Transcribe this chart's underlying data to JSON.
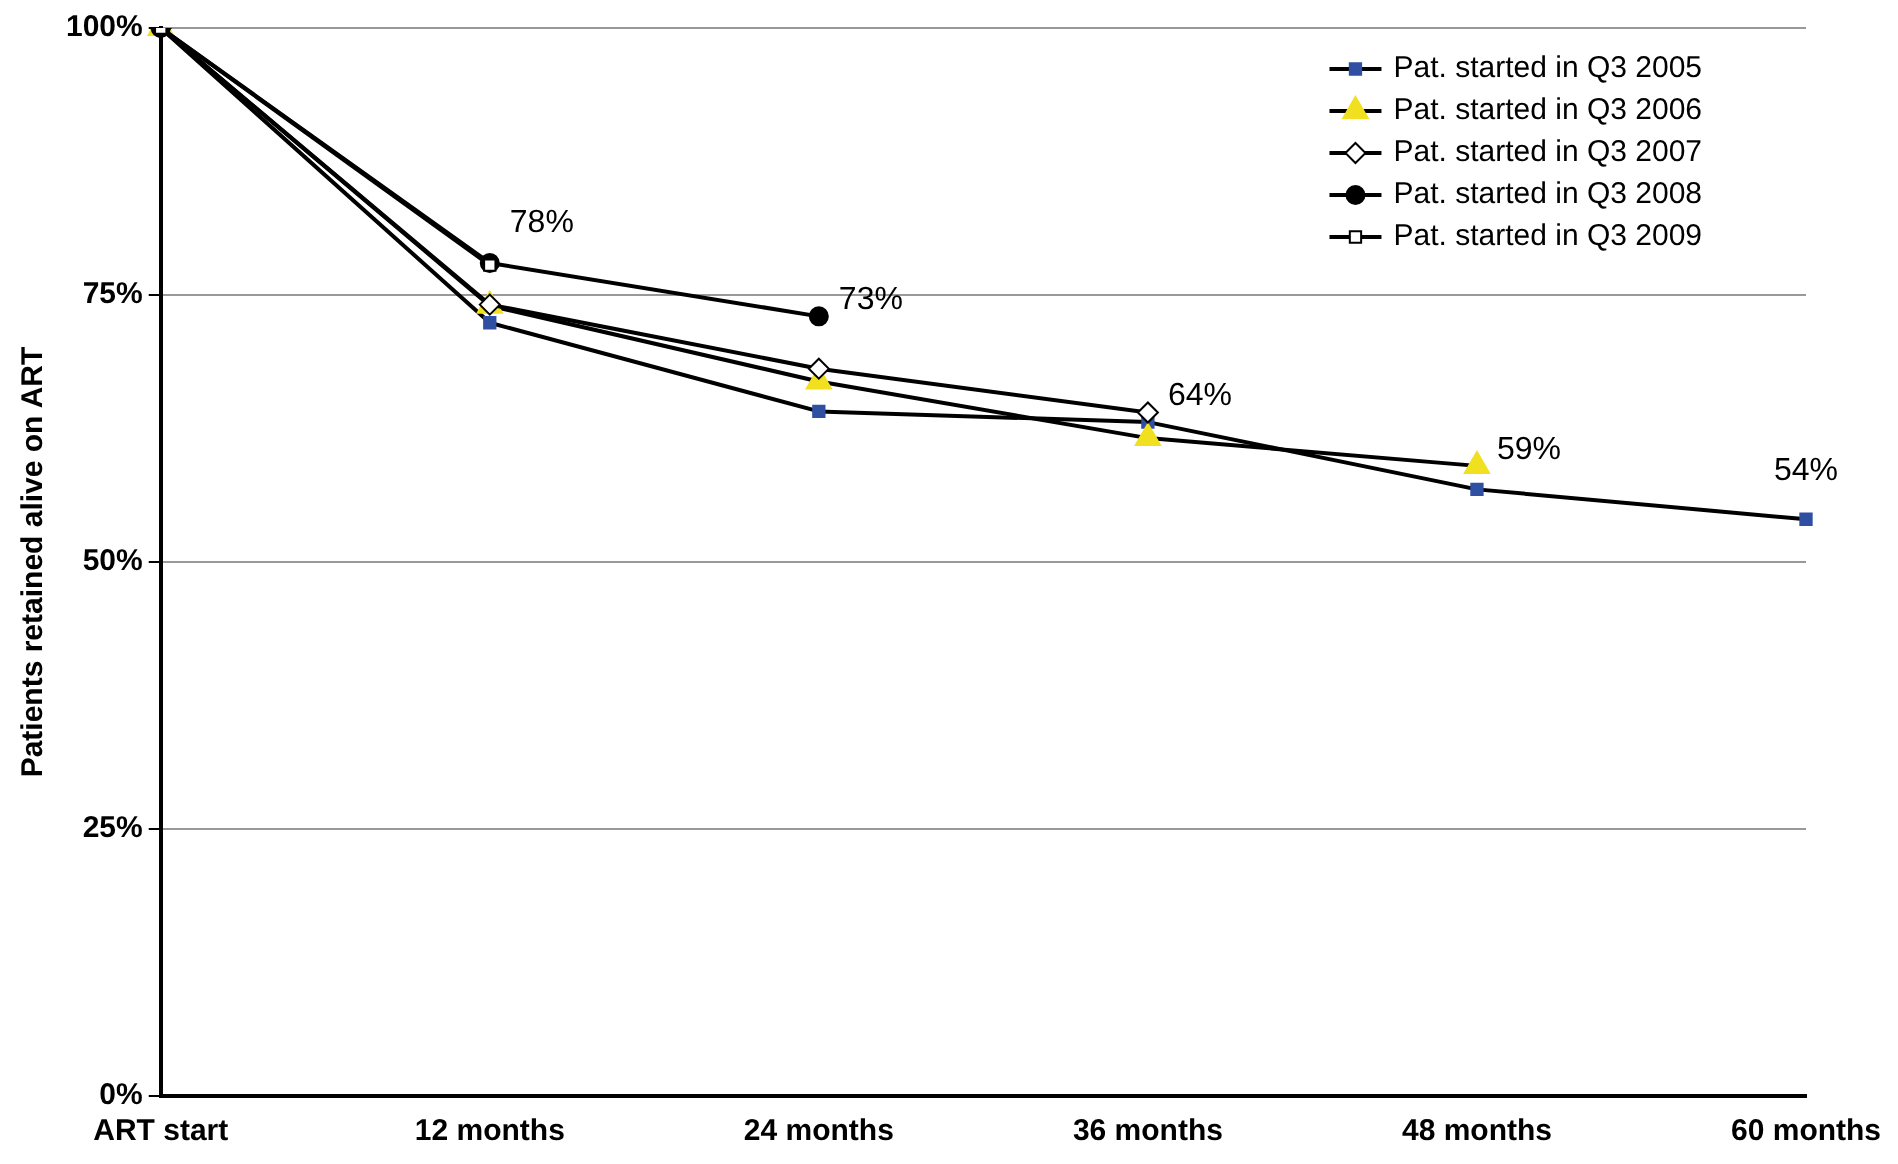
{
  "chart_data": {
    "type": "line",
    "ylabel": "Patients retained alive on ART",
    "categories": [
      "ART start",
      "12 months",
      "24 months",
      "36 months",
      "48 months",
      "60 months"
    ],
    "ylim": [
      0,
      100
    ],
    "yticks": [
      {
        "value": 0,
        "label": "0%"
      },
      {
        "value": 25,
        "label": "25%"
      },
      {
        "value": 50,
        "label": "50%"
      },
      {
        "value": 75,
        "label": "75%"
      },
      {
        "value": 100,
        "label": "100%"
      }
    ],
    "grid": "y",
    "legend": "top right",
    "line_style": "solid",
    "series": [
      {
        "name": "Pat. started in Q3 2005",
        "color": "#2f4fa3",
        "marker": "square",
        "values": [
          100,
          72.4,
          64.1,
          63.1,
          56.8,
          54
        ],
        "value_labels": [
          null,
          null,
          null,
          null,
          null,
          "54%"
        ]
      },
      {
        "name": "Pat. started in Q3 2006",
        "color": "#f0e020",
        "marker": "triangle",
        "values": [
          100,
          74,
          66.9,
          61.6,
          59,
          null
        ],
        "value_labels": [
          null,
          null,
          null,
          null,
          "59%",
          null
        ]
      },
      {
        "name": "Pat. started in Q3 2007",
        "color": "#ffffff",
        "marker": "diamond",
        "values": [
          100,
          74.1,
          68.1,
          64,
          null,
          null
        ],
        "value_labels": [
          null,
          null,
          null,
          "64%",
          null,
          null
        ]
      },
      {
        "name": "Pat. started in Q3 2008",
        "color": "#000000",
        "marker": "circle",
        "values": [
          100,
          78,
          73,
          null,
          null,
          null
        ],
        "value_labels": [
          null,
          "78%",
          "73%",
          null,
          null,
          null
        ]
      },
      {
        "name": "Pat. started in Q3 2009",
        "color": "#ffffff",
        "marker": "square",
        "values": [
          100,
          77.8,
          null,
          null,
          null,
          null
        ]
      }
    ]
  }
}
